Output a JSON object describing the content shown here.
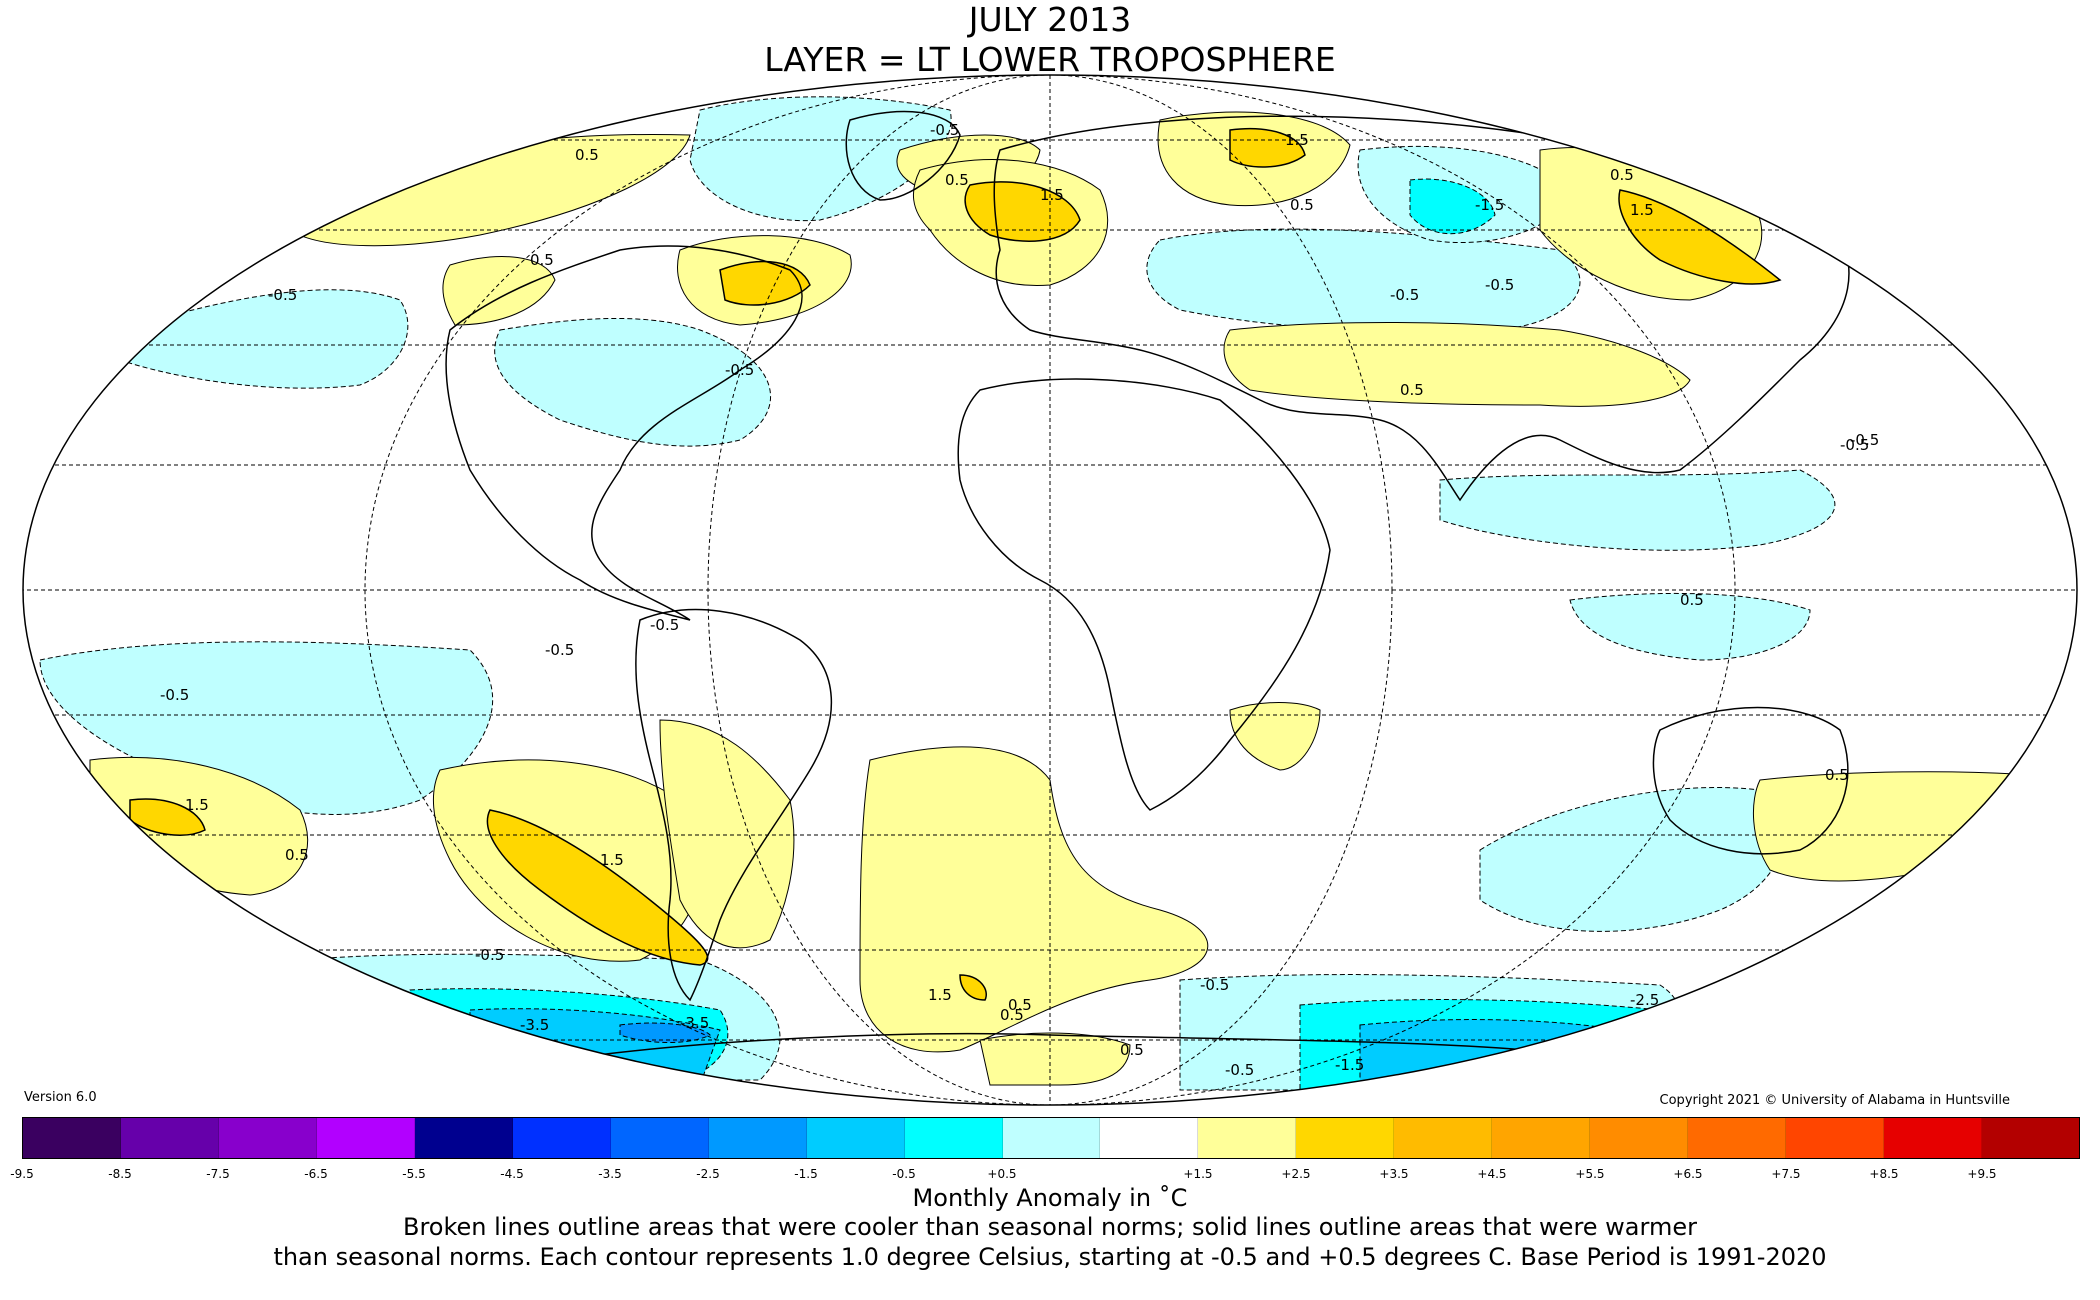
{
  "title": {
    "line1": "JULY 2013",
    "line2": "LAYER = LT LOWER TROPOSPHERE"
  },
  "version": "Version 6.0",
  "copyright": "Copyright 2021 © University of Alabama in Huntsville",
  "colorbar": {
    "colors": [
      "#3a0060",
      "#6600aa",
      "#8800cc",
      "#b200ff",
      "#00008f",
      "#0030ff",
      "#0066ff",
      "#0099ff",
      "#00ccff",
      "#00ffff",
      "#bfffff",
      "#ffffff",
      "#ffff99",
      "#ffd700",
      "#ffbb00",
      "#ffa500",
      "#ff8c00",
      "#ff6a00",
      "#ff4500",
      "#e60000",
      "#b30000"
    ],
    "ticks": [
      "-9.5",
      "-8.5",
      "-7.5",
      "-6.5",
      "-5.5",
      "-4.5",
      "-3.5",
      "-2.5",
      "-1.5",
      "-0.5",
      "+0.5",
      "+1.5",
      "+2.5",
      "+3.5",
      "+4.5",
      "+5.5",
      "+6.5",
      "+7.5",
      "+8.5",
      "+9.5"
    ]
  },
  "units": "Monthly Anomaly in ˚C",
  "note_line1": "Broken lines outline areas that were cooler than seasonal norms; solid lines outline areas that were warmer",
  "note_line2": "than seasonal norms. Each contour represents 1.0 degree Celsius, starting at -0.5 and +0.5 degrees C. Base Period is 1991-2020",
  "contour_labels": [
    "0.5",
    "-0.5",
    "-0.5",
    "0.5",
    "-0.5",
    "1.5",
    "0.5",
    "-0.5",
    "-1.5",
    "1.5",
    "0.5",
    "-0.5",
    "0.5",
    "-0.5",
    "-0.5",
    "0.5",
    "1.5",
    "0.5",
    "1.5",
    "-0.5",
    "1.5",
    "0.5",
    "-0.5",
    "-0.5",
    "-3.5",
    "-3.5",
    "-2.5",
    "-1.5",
    "-0.5",
    "0.5",
    "0.5",
    "0.5",
    "-0.5",
    "1.5",
    "0.5",
    "-0.5"
  ],
  "colors": {
    "warm_1": "#ffff99",
    "warm_2": "#ffd700",
    "cool_1": "#bfffff",
    "cool_2": "#00ffff",
    "cool_3": "#00ccff",
    "cool_4": "#0099ff",
    "cool_5": "#0066ff"
  }
}
